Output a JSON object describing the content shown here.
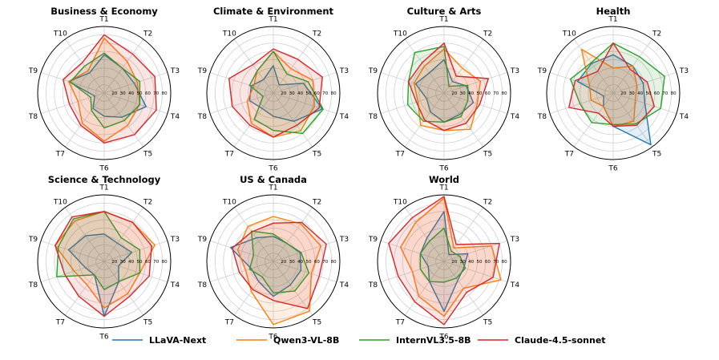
{
  "chart_data": [
    {
      "type": "radar",
      "title": "Business & Economy",
      "axes": [
        "T1",
        "T2",
        "T3",
        "T4",
        "T5",
        "T6",
        "T7",
        "T8",
        "T9",
        "T10"
      ],
      "rlim": [
        10,
        90
      ],
      "rticks": [
        "20",
        "30",
        "40",
        "50",
        "60",
        "70",
        "80"
      ],
      "series": [
        {
          "name": "LLaVA-Next",
          "values": [
            56,
            47,
            48,
            63,
            46,
            38,
            33,
            22,
            55,
            40
          ]
        },
        {
          "name": "Qwen3-VL-8B",
          "values": [
            76,
            57,
            52,
            55,
            58,
            68,
            55,
            43,
            55,
            43
          ]
        },
        {
          "name": "InternVL3.5-8B",
          "values": [
            58,
            47,
            55,
            55,
            51,
            52,
            36,
            27,
            53,
            50
          ]
        },
        {
          "name": "Claude-4.5-sonnet",
          "values": [
            80,
            68,
            74,
            76,
            72,
            70,
            58,
            54,
            62,
            55
          ]
        }
      ]
    },
    {
      "type": "radar",
      "title": "Climate & Environment",
      "axes": [
        "T1",
        "T2",
        "T3",
        "T4",
        "T5",
        "T6",
        "T7",
        "T8",
        "T9",
        "T10"
      ],
      "rlim": [
        10,
        90
      ],
      "rticks": [
        "20",
        "30",
        "40",
        "50",
        "60",
        "70",
        "80"
      ],
      "series": [
        {
          "name": "LLaVA-Next",
          "values": [
            43,
            22,
            48,
            72,
            52,
            38,
            33,
            40,
            38,
            30
          ]
        },
        {
          "name": "Qwen3-VL-8B",
          "values": [
            60,
            46,
            60,
            62,
            66,
            63,
            55,
            43,
            35,
            43
          ]
        },
        {
          "name": "InternVL3.5-8B",
          "values": [
            60,
            38,
            54,
            73,
            70,
            55,
            49,
            23,
            40,
            43
          ]
        },
        {
          "name": "Claude-4.5-sonnet",
          "values": [
            63,
            60,
            72,
            68,
            58,
            63,
            58,
            62,
            66,
            52
          ]
        }
      ]
    },
    {
      "type": "radar",
      "title": "Culture & Arts",
      "axes": [
        "T1",
        "T2",
        "T3",
        "T4",
        "T5",
        "T6",
        "T7",
        "T8",
        "T9",
        "T10"
      ],
      "rlim": [
        10,
        90
      ],
      "rticks": [
        "20",
        "30",
        "40",
        "50",
        "60",
        "70",
        "80"
      ],
      "series": [
        {
          "name": "LLaVA-Next",
          "values": [
            50,
            27,
            38,
            47,
            42,
            45,
            38,
            32,
            46,
            40
          ]
        },
        {
          "name": "Qwen3-VL-8B",
          "values": [
            63,
            47,
            56,
            52,
            64,
            55,
            58,
            43,
            48,
            50
          ]
        },
        {
          "name": "InternVL3.5-8B",
          "values": [
            66,
            20,
            40,
            40,
            45,
            45,
            52,
            56,
            55,
            70
          ]
        },
        {
          "name": "Claude-4.5-sonnet",
          "values": [
            70,
            35,
            66,
            55,
            55,
            55,
            50,
            45,
            55,
            55
          ]
        }
      ]
    },
    {
      "type": "radar",
      "title": "Health",
      "axes": [
        "T1",
        "T2",
        "T3",
        "T4",
        "T5",
        "T6",
        "T7",
        "T8",
        "T9",
        "T10"
      ],
      "rlim": [
        10,
        90
      ],
      "rticks": [
        "20",
        "30",
        "40",
        "50",
        "60",
        "70",
        "80"
      ],
      "series": [
        {
          "name": "LLaVA-Next",
          "values": [
            56,
            50,
            48,
            50,
            87,
            50,
            30,
            22,
            55,
            54
          ]
        },
        {
          "name": "Qwen3-VL-8B",
          "values": [
            40,
            50,
            40,
            38,
            52,
            50,
            30,
            38,
            40,
            75
          ]
        },
        {
          "name": "InternVL3.5-8B",
          "values": [
            70,
            64,
            75,
            70,
            56,
            48,
            54,
            52,
            64,
            55
          ]
        },
        {
          "name": "Claude-4.5-sonnet",
          "values": [
            70,
            45,
            53,
            62,
            58,
            50,
            40,
            66,
            58,
            42
          ]
        }
      ]
    },
    {
      "type": "radar",
      "title": "Science & Technology",
      "axes": [
        "T1",
        "T2",
        "T3",
        "T4",
        "T5",
        "T6",
        "T7",
        "T8",
        "T9",
        "T10"
      ],
      "rlim": [
        10,
        90
      ],
      "rticks": [
        "20",
        "30",
        "40",
        "50",
        "60",
        "70",
        "80"
      ],
      "series": [
        {
          "name": "LLaVA-Next",
          "values": [
            43,
            37,
            45,
            28,
            40,
            76,
            30,
            34,
            55,
            48
          ]
        },
        {
          "name": "Qwen3-VL-8B",
          "values": [
            70,
            68,
            74,
            55,
            58,
            66,
            45,
            48,
            72,
            70
          ]
        },
        {
          "name": "InternVL3.5-8B",
          "values": [
            70,
            45,
            55,
            55,
            40,
            44,
            30,
            70,
            68,
            73
          ]
        },
        {
          "name": "Claude-4.5-sonnet",
          "values": [
            70,
            68,
            70,
            67,
            62,
            76,
            62,
            60,
            72,
            76
          ]
        }
      ]
    },
    {
      "type": "radar",
      "title": "US & Canada",
      "axes": [
        "T1",
        "T2",
        "T3",
        "T4",
        "T5",
        "T6",
        "T7",
        "T8",
        "T9",
        "T10"
      ],
      "rlim": [
        10,
        90
      ],
      "rticks": [
        "20",
        "30",
        "40",
        "50",
        "60",
        "70",
        "80"
      ],
      "series": [
        {
          "name": "LLaVA-Next",
          "values": [
            40,
            37,
            44,
            45,
            45,
            52,
            40,
            38,
            64,
            45
          ]
        },
        {
          "name": "Qwen3-VL-8B",
          "values": [
            64,
            66,
            70,
            58,
            84,
            86,
            55,
            45,
            55,
            62
          ]
        },
        {
          "name": "InternVL3.5-8B",
          "values": [
            43,
            37,
            45,
            55,
            54,
            48,
            33,
            40,
            35,
            55
          ]
        },
        {
          "name": "Claude-4.5-sonnet",
          "values": [
            56,
            68,
            77,
            68,
            80,
            57,
            52,
            53,
            62,
            54
          ]
        }
      ]
    },
    {
      "type": "radar",
      "title": "World",
      "axes": [
        "T1",
        "T2",
        "T3",
        "T4",
        "T5",
        "T6",
        "T7",
        "T8",
        "T9",
        "T10"
      ],
      "rlim": [
        10,
        90
      ],
      "rticks": [
        "20",
        "30",
        "40",
        "50",
        "60",
        "70",
        "80"
      ],
      "series": [
        {
          "name": "LLaVA-Next",
          "values": [
            70,
            20,
            40,
            35,
            38,
            70,
            40,
            30,
            40,
            45
          ]
        },
        {
          "name": "Qwen3-VL-8B",
          "values": [
            86,
            30,
            70,
            82,
            50,
            76,
            62,
            50,
            65,
            68
          ]
        },
        {
          "name": "InternVL3.5-8B",
          "values": [
            50,
            25,
            30,
            37,
            35,
            35,
            40,
            40,
            40,
            40
          ]
        },
        {
          "name": "Claude-4.5-sonnet",
          "values": [
            88,
            35,
            80,
            72,
            56,
            86,
            70,
            68,
            80,
            75
          ]
        }
      ]
    }
  ],
  "legend": {
    "position": "bottom",
    "items": [
      {
        "name": "LLaVA-Next",
        "color": "#1f77b4"
      },
      {
        "name": "Qwen3-VL-8B",
        "color": "#ff7f0e"
      },
      {
        "name": "InternVL3.5-8B",
        "color": "#2ca02c"
      },
      {
        "name": "Claude-4.5-sonnet",
        "color": "#d62728"
      }
    ]
  }
}
